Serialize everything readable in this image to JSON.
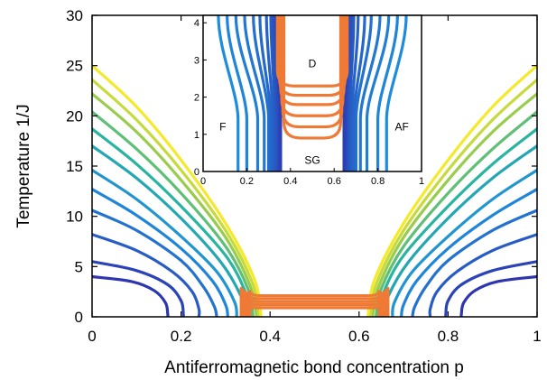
{
  "colors": {
    "ferro_curves_low": "#2e35b0",
    "ferro_curves_high": "#f5e92a",
    "spin_glass_curves": "#ee7a36",
    "axes": "#000000",
    "background": "#ffffff"
  },
  "chart_data": [
    {
      "type": "line",
      "title": "",
      "xlabel": "Antiferromagnetic bond concentration p",
      "ylabel": "Temperature 1/J",
      "xlim": [
        0,
        1
      ],
      "ylim": [
        0,
        30
      ],
      "x_ticks": [
        "0",
        "0.2",
        "0.4",
        "0.6",
        "0.8",
        "1"
      ],
      "y_ticks": [
        "0",
        "5",
        "10",
        "15",
        "20",
        "25",
        "30"
      ],
      "grid": false,
      "legend": "none",
      "series_groups": {
        "ordered_phase_boundaries": {
          "color_map": "blue-to-yellow by peak temperature",
          "note": "curves symmetric about p=0.5",
          "left_boundaries": [
            {
              "peak": 4.0,
              "points": [
                [
                  0,
                  4.0
                ],
                [
                  0.09,
                  3.5
                ],
                [
                  0.14,
                  2.6
                ],
                [
                  0.165,
                  1.4
                ],
                [
                  0.17,
                  0.3
                ],
                [
                  0.17,
                  0
                ]
              ]
            },
            {
              "peak": 5.5,
              "points": [
                [
                  0,
                  5.5
                ],
                [
                  0.1,
                  4.6
                ],
                [
                  0.17,
                  3.2
                ],
                [
                  0.2,
                  1.6
                ],
                [
                  0.205,
                  0.3
                ],
                [
                  0.205,
                  0
                ]
              ]
            },
            {
              "peak": 8.2,
              "points": [
                [
                  0,
                  8.2
                ],
                [
                  0.1,
                  6.6
                ],
                [
                  0.18,
                  4.5
                ],
                [
                  0.225,
                  2.5
                ],
                [
                  0.24,
                  0.8
                ],
                [
                  0.24,
                  0
                ]
              ]
            },
            {
              "peak": 10.6,
              "points": [
                [
                  0,
                  10.6
                ],
                [
                  0.1,
                  8.6
                ],
                [
                  0.2,
                  5.6
                ],
                [
                  0.25,
                  3.0
                ],
                [
                  0.275,
                  1.0
                ],
                [
                  0.28,
                  0
                ]
              ]
            },
            {
              "peak": 12.7,
              "points": [
                [
                  0,
                  12.7
                ],
                [
                  0.1,
                  10.1
                ],
                [
                  0.2,
                  6.8
                ],
                [
                  0.27,
                  3.6
                ],
                [
                  0.3,
                  1.2
                ],
                [
                  0.305,
                  0
                ]
              ]
            },
            {
              "peak": 14.6,
              "points": [
                [
                  0,
                  14.6
                ],
                [
                  0.1,
                  11.7
                ],
                [
                  0.2,
                  8.0
                ],
                [
                  0.28,
                  4.5
                ],
                [
                  0.32,
                  1.5
                ],
                [
                  0.325,
                  0
                ]
              ]
            },
            {
              "peak": 17.0,
              "points": [
                [
                  0,
                  17.0
                ],
                [
                  0.1,
                  13.8
                ],
                [
                  0.2,
                  9.8
                ],
                [
                  0.29,
                  5.4
                ],
                [
                  0.335,
                  2.0
                ],
                [
                  0.345,
                  0
                ]
              ]
            },
            {
              "peak": 18.7,
              "points": [
                [
                  0,
                  18.7
                ],
                [
                  0.1,
                  15.2
                ],
                [
                  0.2,
                  11.0
                ],
                [
                  0.3,
                  6.1
                ],
                [
                  0.345,
                  2.4
                ],
                [
                  0.355,
                  0
                ]
              ]
            },
            {
              "peak": 20.4,
              "points": [
                [
                  0,
                  20.4
                ],
                [
                  0.1,
                  16.7
                ],
                [
                  0.2,
                  12.3
                ],
                [
                  0.3,
                  7.0
                ],
                [
                  0.35,
                  2.8
                ],
                [
                  0.362,
                  0
                ]
              ]
            },
            {
              "peak": 22.2,
              "points": [
                [
                  0,
                  22.2
                ],
                [
                  0.1,
                  18.4
                ],
                [
                  0.2,
                  13.6
                ],
                [
                  0.3,
                  7.9
                ],
                [
                  0.355,
                  3.1
                ],
                [
                  0.37,
                  0
                ]
              ]
            },
            {
              "peak": 23.6,
              "points": [
                [
                  0,
                  23.6
                ],
                [
                  0.1,
                  19.6
                ],
                [
                  0.2,
                  14.6
                ],
                [
                  0.3,
                  8.6
                ],
                [
                  0.36,
                  3.4
                ],
                [
                  0.375,
                  0
                ]
              ]
            },
            {
              "peak": 25.0,
              "points": [
                [
                  0,
                  25.0
                ],
                [
                  0.1,
                  20.9
                ],
                [
                  0.2,
                  15.6
                ],
                [
                  0.3,
                  9.3
                ],
                [
                  0.365,
                  3.7
                ],
                [
                  0.38,
                  0
                ]
              ]
            }
          ]
        },
        "spin_glass_boundaries": {
          "color": "#ee7a36",
          "note": "U-shaped curves, lines between branches at minimum temperature",
          "curves": [
            {
              "p_left": 0.335,
              "p_right": 0.665,
              "t_min": 0.9,
              "t_edge": 3.2
            },
            {
              "p_left": 0.34,
              "p_right": 0.66,
              "t_min": 1.2,
              "t_edge": 3.0
            },
            {
              "p_left": 0.345,
              "p_right": 0.655,
              "t_min": 1.5,
              "t_edge": 2.8
            },
            {
              "p_left": 0.35,
              "p_right": 0.65,
              "t_min": 1.8,
              "t_edge": 2.7
            },
            {
              "p_left": 0.355,
              "p_right": 0.645,
              "t_min": 2.1,
              "t_edge": 2.9
            }
          ]
        }
      }
    },
    {
      "type": "line",
      "title": "",
      "xlabel": "",
      "ylabel": "",
      "xlim": [
        0,
        1
      ],
      "ylim": [
        0,
        4.2
      ],
      "x_ticks": [
        "0",
        "0.2",
        "0.4",
        "0.6",
        "0.8",
        "1"
      ],
      "y_ticks": [
        "0",
        "1",
        "2",
        "3",
        "4"
      ],
      "grid": false,
      "legend": "none",
      "region_labels": [
        {
          "text": "F",
          "p": 0.09,
          "t": 1.2
        },
        {
          "text": "D",
          "p": 0.5,
          "t": 2.9
        },
        {
          "text": "AF",
          "p": 0.91,
          "t": 1.2
        },
        {
          "text": "SG",
          "p": 0.5,
          "t": 0.3
        }
      ],
      "ferro_verticals": [
        {
          "p_bottom": 0.16,
          "p_top": 0.07,
          "t_top": 4.2
        },
        {
          "p_bottom": 0.2,
          "p_top": 0.11,
          "t_top": 4.2
        },
        {
          "p_bottom": 0.25,
          "p_top": 0.15,
          "t_top": 4.2
        },
        {
          "p_bottom": 0.28,
          "p_top": 0.19,
          "t_top": 4.2
        },
        {
          "p_bottom": 0.3,
          "p_top": 0.23,
          "t_top": 4.2
        },
        {
          "p_bottom": 0.31,
          "p_top": 0.26,
          "t_top": 4.2
        },
        {
          "p_bottom": 0.32,
          "p_top": 0.29,
          "t_top": 4.2
        },
        {
          "p_bottom": 0.33,
          "p_top": 0.31,
          "t_top": 4.2
        },
        {
          "p_bottom": 0.34,
          "p_top": 0.32,
          "t_top": 4.2
        },
        {
          "p_bottom": 0.345,
          "p_top": 0.33,
          "t_top": 4.2
        },
        {
          "p_bottom": 0.35,
          "p_top": 0.335,
          "t_top": 4.2
        },
        {
          "p_bottom": 0.355,
          "p_top": 0.34,
          "t_top": 4.2
        }
      ],
      "spin_glass_curves": [
        {
          "p_left": 0.34,
          "p_right": 0.66,
          "t_min": 2.3,
          "t_top": 4.2
        },
        {
          "p_left": 0.35,
          "p_right": 0.65,
          "t_min": 2.05,
          "t_top": 4.2
        },
        {
          "p_left": 0.355,
          "p_right": 0.645,
          "t_min": 1.8,
          "t_top": 4.2
        },
        {
          "p_left": 0.36,
          "p_right": 0.64,
          "t_min": 1.5,
          "t_top": 4.2
        },
        {
          "p_left": 0.365,
          "p_right": 0.635,
          "t_min": 1.2,
          "t_top": 4.2
        },
        {
          "p_left": 0.37,
          "p_right": 0.63,
          "t_min": 0.9,
          "t_top": 4.2
        }
      ]
    }
  ]
}
